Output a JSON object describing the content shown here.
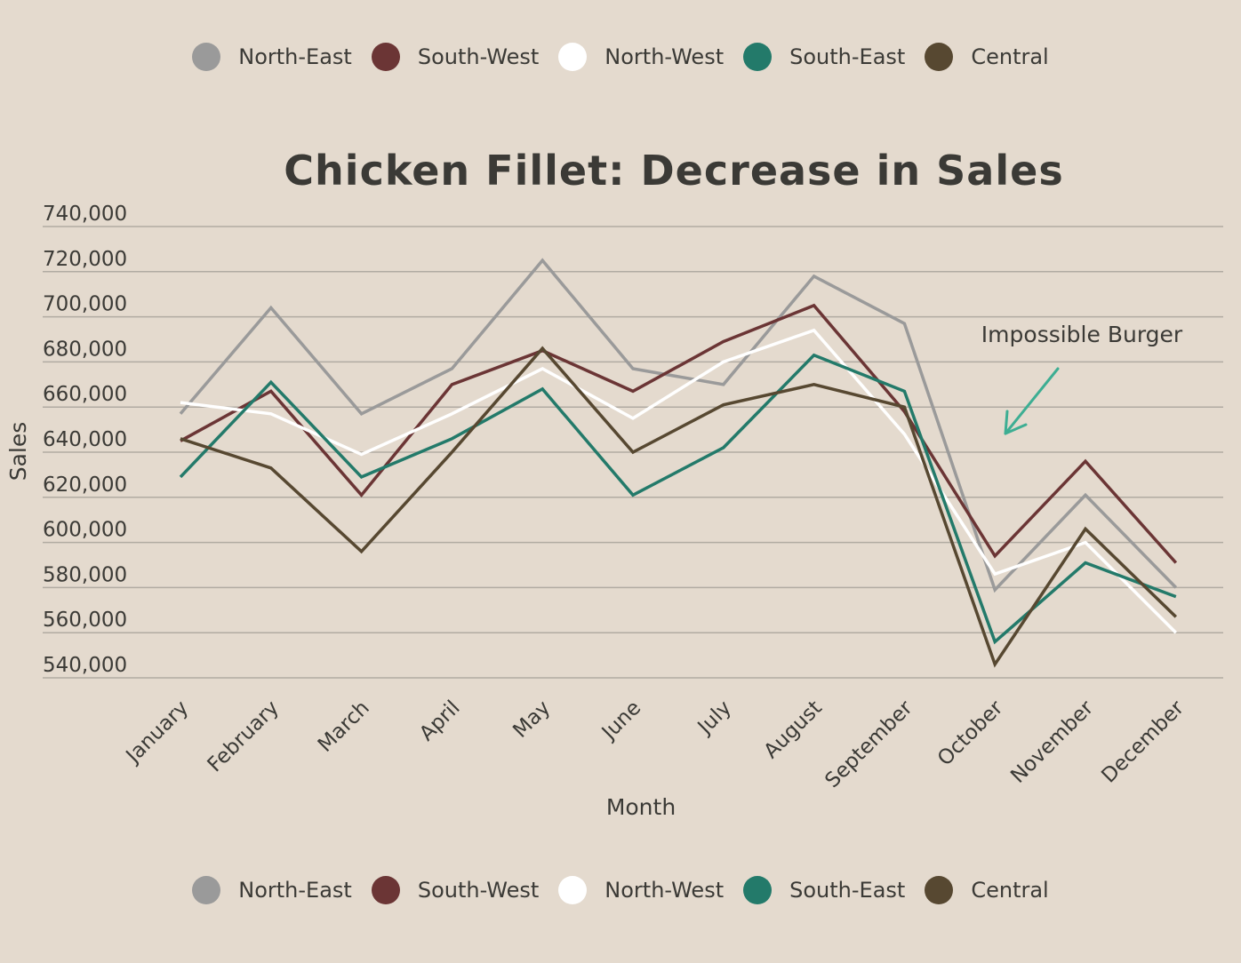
{
  "chart_data": {
    "type": "line",
    "title": "Chicken Fillet: Decrease in Sales",
    "xlabel": "Month",
    "ylabel": "Sales",
    "ylim": [
      540000,
      740000
    ],
    "yticks": [
      740000,
      720000,
      700000,
      680000,
      660000,
      640000,
      620000,
      600000,
      580000,
      560000,
      540000
    ],
    "yticks_labels": [
      "740,000",
      "720,000",
      "700,000",
      "680,000",
      "660,000",
      "640,000",
      "620,000",
      "600,000",
      "580,000",
      "560,000",
      "540,000"
    ],
    "grid": true,
    "legend_position": "top and bottom",
    "categories": [
      "January",
      "February",
      "March",
      "April",
      "May",
      "June",
      "July",
      "August",
      "September",
      "October",
      "November",
      "December"
    ],
    "series": [
      {
        "name": "North-East",
        "color": "#9a9a9a",
        "values": [
          657000,
          704000,
          657000,
          677000,
          725000,
          677000,
          670000,
          718000,
          697000,
          579000,
          621000,
          580000
        ]
      },
      {
        "name": "South-West",
        "color": "#6b3535",
        "values": [
          645000,
          667000,
          621000,
          670000,
          685000,
          667000,
          689000,
          705000,
          658000,
          594000,
          636000,
          591000
        ]
      },
      {
        "name": "North-West",
        "color": "#ffffff",
        "values": [
          662000,
          657000,
          639000,
          657000,
          677000,
          655000,
          680000,
          694000,
          648000,
          586000,
          600000,
          560000
        ]
      },
      {
        "name": "South-East",
        "color": "#237a6a",
        "values": [
          629000,
          671000,
          629000,
          646000,
          668000,
          621000,
          642000,
          683000,
          667000,
          556000,
          591000,
          576000
        ]
      },
      {
        "name": "Central",
        "color": "#574831",
        "values": [
          646000,
          633000,
          596000,
          640000,
          686000,
          640000,
          661000,
          670000,
          660000,
          546000,
          606000,
          567000
        ]
      }
    ],
    "annotations": [
      {
        "text": "Impossible Burger",
        "arrow_color": "#3dae93"
      }
    ]
  }
}
